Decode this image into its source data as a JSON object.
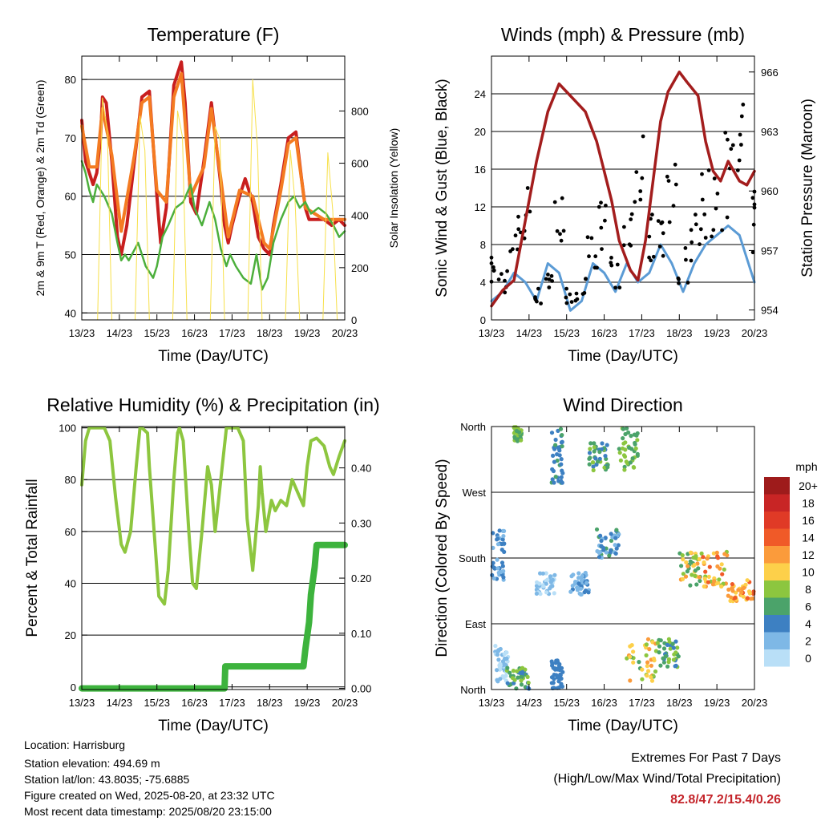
{
  "chart_data": [
    {
      "type": "line",
      "title": "Temperature (F)",
      "xlabel": "Time (Day/UTC)",
      "ylabel": "2m & 9m T (Red, Orange) & 2m Td (Green)",
      "y2label": "Solar Insolation (Yellow)",
      "x_ticks": [
        "13/23",
        "14/23",
        "15/23",
        "16/23",
        "17/23",
        "18/23",
        "19/23",
        "20/23"
      ],
      "xlim": [
        0,
        7
      ],
      "ylim": [
        38.8,
        84
      ],
      "y_ticks": [
        40,
        50,
        60,
        70,
        80
      ],
      "y2lim": [
        0,
        1010
      ],
      "y2_ticks": [
        0,
        200,
        400,
        600,
        800
      ],
      "grid": true,
      "series": [
        {
          "key": "t2m",
          "color": "#c81e1e",
          "x": [
            0,
            0.1,
            0.2,
            0.3,
            0.4,
            0.5,
            0.55,
            0.65,
            0.8,
            0.95,
            1.05,
            1.2,
            1.4,
            1.6,
            1.8,
            1.9,
            2.0,
            2.1,
            2.25,
            2.45,
            2.65,
            2.75,
            2.9,
            3.05,
            3.25,
            3.45,
            3.7,
            3.8,
            3.9,
            4.0,
            4.2,
            4.35,
            4.55,
            4.7,
            4.85,
            5.0,
            5.1,
            5.3,
            5.5,
            5.7,
            5.85,
            5.95,
            6.05,
            6.2,
            6.45,
            6.65,
            6.85,
            7.0
          ],
          "values": [
            73,
            66,
            64,
            62,
            64,
            70,
            77,
            76,
            66,
            53,
            50,
            55,
            66,
            77,
            78,
            69,
            60,
            52,
            58,
            79,
            83,
            76,
            59,
            57,
            66,
            76,
            62,
            55,
            52,
            55,
            60,
            63,
            59,
            53,
            51,
            50,
            55,
            62,
            70,
            71,
            63,
            58,
            56,
            56,
            56,
            55,
            56,
            55
          ]
        },
        {
          "key": "t9m",
          "color": "#f47b22",
          "x": [
            0,
            0.2,
            0.4,
            0.55,
            0.8,
            1.05,
            1.4,
            1.6,
            1.8,
            2.0,
            2.25,
            2.45,
            2.65,
            2.9,
            3.25,
            3.45,
            3.7,
            3.9,
            4.2,
            4.55,
            4.85,
            5.0,
            5.3,
            5.5,
            5.7,
            5.95,
            6.2,
            6.45,
            6.65,
            7.0
          ],
          "values": [
            72,
            65,
            65,
            75,
            67,
            54,
            67,
            76,
            77,
            61,
            59,
            77,
            81,
            60,
            65,
            75,
            63,
            53,
            61,
            60,
            52,
            51,
            61,
            69,
            70,
            58,
            57,
            56,
            56,
            56
          ]
        },
        {
          "key": "td2m",
          "color": "#4caf3c",
          "x": [
            0,
            0.1,
            0.2,
            0.3,
            0.4,
            0.6,
            0.8,
            0.95,
            1.05,
            1.15,
            1.25,
            1.5,
            1.7,
            1.9,
            2.0,
            2.15,
            2.3,
            2.5,
            2.7,
            2.9,
            3.0,
            3.2,
            3.4,
            3.55,
            3.7,
            3.85,
            3.95,
            4.1,
            4.3,
            4.5,
            4.65,
            4.8,
            4.95,
            5.1,
            5.3,
            5.5,
            5.65,
            5.8,
            5.95,
            6.1,
            6.3,
            6.5,
            6.7,
            6.85,
            7.0
          ],
          "values": [
            66,
            64,
            61,
            59,
            62,
            60,
            57,
            52,
            49,
            50,
            49,
            52,
            48,
            46,
            48,
            53,
            55,
            58,
            59,
            62,
            58,
            55,
            59,
            56,
            51,
            48,
            50,
            48,
            46,
            45,
            50,
            44,
            46,
            52,
            56,
            59,
            60,
            58,
            59,
            57,
            58,
            57,
            55,
            53,
            54
          ]
        },
        {
          "key": "solar",
          "axis": "y2",
          "color": "#f7e04a",
          "x": [
            0.42,
            0.55,
            0.68,
            0.8,
            1.42,
            1.55,
            1.68,
            1.8,
            2.42,
            2.55,
            2.68,
            2.8,
            3.42,
            3.55,
            3.68,
            3.8,
            4.42,
            4.55,
            4.68,
            4.8,
            5.42,
            5.55,
            5.68,
            5.8,
            6.42,
            6.55,
            6.68,
            6.8
          ],
          "values": [
            0,
            850,
            720,
            0,
            0,
            780,
            650,
            0,
            0,
            800,
            700,
            0,
            0,
            740,
            690,
            0,
            0,
            920,
            650,
            0,
            0,
            650,
            450,
            0,
            0,
            640,
            420,
            0
          ]
        }
      ]
    },
    {
      "type": "scatter",
      "title": "Winds (mph) & Pressure (mb)",
      "xlabel": "Time (Day/UTC)",
      "ylabel": "Sonic Wind & Gust (Blue, Black)",
      "y2label": "Station Pressure (Maroon)",
      "x_ticks": [
        "13/23",
        "14/23",
        "15/23",
        "16/23",
        "17/23",
        "18/23",
        "19/23",
        "20/23"
      ],
      "xlim": [
        0,
        7
      ],
      "ylim": [
        0,
        28
      ],
      "y_ticks": [
        0,
        4,
        8,
        12,
        16,
        20,
        24
      ],
      "y2lim": [
        953.5,
        966.8
      ],
      "y2_ticks": [
        954,
        957,
        960,
        963,
        966
      ],
      "grid": true,
      "series": [
        {
          "key": "wind",
          "color": "#5b9bd5",
          "x": [
            0,
            0.3,
            0.6,
            0.9,
            1.2,
            1.5,
            1.8,
            2.1,
            2.4,
            2.7,
            3.0,
            3.3,
            3.6,
            3.9,
            4.2,
            4.5,
            4.8,
            5.1,
            5.4,
            5.7,
            6.0,
            6.3,
            6.6,
            7.0
          ],
          "values": [
            2,
            3,
            5,
            4,
            2,
            6,
            5,
            1,
            2,
            6,
            5,
            3,
            6,
            4,
            5,
            8,
            6,
            3,
            6,
            8,
            9,
            10,
            9,
            4
          ]
        },
        {
          "key": "gust",
          "color": "#000000",
          "x": [
            0,
            0.3,
            0.6,
            0.9,
            1.2,
            1.5,
            1.8,
            2.1,
            2.4,
            2.7,
            3.0,
            3.3,
            3.6,
            3.9,
            4.2,
            4.5,
            4.8,
            5.1,
            5.4,
            5.7,
            6.0,
            6.3,
            6.6,
            7.0
          ],
          "values": [
            6,
            5,
            10,
            13,
            3,
            5,
            12,
            3,
            4,
            8,
            11,
            6,
            10,
            17,
            10,
            12,
            15,
            7,
            10,
            14,
            16,
            18,
            20,
            12
          ]
        },
        {
          "key": "pressure",
          "axis": "y2",
          "color": "#a31d1d",
          "x": [
            0,
            0.3,
            0.6,
            0.9,
            1.2,
            1.5,
            1.8,
            2.0,
            2.2,
            2.5,
            2.8,
            3.0,
            3.2,
            3.4,
            3.7,
            3.9,
            4.1,
            4.3,
            4.5,
            4.7,
            5.0,
            5.2,
            5.5,
            5.7,
            5.9,
            6.1,
            6.3,
            6.6,
            6.8,
            7.0
          ],
          "values": [
            954.2,
            955.0,
            955.5,
            958.5,
            961.5,
            964.0,
            965.4,
            965.0,
            964.6,
            964.0,
            962.5,
            961.0,
            959.5,
            957.5,
            956.0,
            955.5,
            957.5,
            960.5,
            963.5,
            965.0,
            966.0,
            965.5,
            964.8,
            962.5,
            961.0,
            960.5,
            961.5,
            960.5,
            960.3,
            961.0
          ]
        }
      ]
    },
    {
      "type": "line",
      "title": "Relative Humidity (%) & Precipitation (in)",
      "xlabel": "Time (Day/UTC)",
      "ylabel": "Percent & Total Rainfall",
      "x_ticks": [
        "13/23",
        "14/23",
        "15/23",
        "16/23",
        "17/23",
        "18/23",
        "19/23",
        "20/23"
      ],
      "xlim": [
        0,
        7
      ],
      "ylim": [
        -1,
        100.5
      ],
      "y_ticks": [
        0,
        20,
        40,
        60,
        80,
        100
      ],
      "y2lim": [
        -0.0021,
        0.475
      ],
      "y2_ticks": [
        "0.00",
        "0.10",
        "0.20",
        "0.30",
        "0.40"
      ],
      "grid": true,
      "series": [
        {
          "key": "rh",
          "color": "#8dc63f",
          "x": [
            0,
            0.1,
            0.2,
            0.35,
            0.6,
            0.75,
            0.9,
            1.05,
            1.15,
            1.3,
            1.45,
            1.55,
            1.6,
            1.75,
            1.8,
            1.95,
            2.05,
            2.2,
            2.3,
            2.45,
            2.55,
            2.6,
            2.7,
            2.85,
            2.95,
            3.05,
            3.2,
            3.35,
            3.45,
            3.55,
            3.7,
            3.85,
            3.9,
            4.0,
            4.15,
            4.3,
            4.4,
            4.55,
            4.7,
            4.75,
            4.8,
            4.9,
            5.05,
            5.15,
            5.3,
            5.45,
            5.6,
            5.75,
            5.9,
            6.0,
            6.1,
            6.25,
            6.45,
            6.6,
            6.7,
            6.85,
            7.0
          ],
          "values": [
            78,
            95,
            100,
            100,
            100,
            95,
            73,
            55,
            52,
            60,
            85,
            100,
            100,
            98,
            85,
            55,
            35,
            32,
            45,
            80,
            98,
            100,
            95,
            60,
            40,
            38,
            60,
            85,
            78,
            60,
            80,
            100,
            100,
            100,
            100,
            95,
            65,
            45,
            70,
            85,
            75,
            60,
            72,
            68,
            72,
            70,
            80,
            75,
            70,
            85,
            95,
            96,
            93,
            85,
            82,
            89,
            95
          ]
        },
        {
          "key": "precip",
          "axis": "y2",
          "color": "#3db33d",
          "x": [
            0,
            3.8,
            3.82,
            5.9,
            5.95,
            6.05,
            6.1,
            6.2,
            6.25,
            7.0
          ],
          "values": [
            0,
            0,
            0.04,
            0.04,
            0.07,
            0.12,
            0.17,
            0.22,
            0.26,
            0.26
          ]
        }
      ]
    },
    {
      "type": "scatter",
      "title": "Wind Direction",
      "xlabel": "Time (Day/UTC)",
      "ylabel": "Direction (Colored By Speed)",
      "x_ticks": [
        "13/23",
        "14/23",
        "15/23",
        "16/23",
        "17/23",
        "18/23",
        "19/23",
        "20/23"
      ],
      "xlim": [
        0,
        7
      ],
      "ylim": [
        0,
        360
      ],
      "y_ticks": [
        {
          "v": 0,
          "label": "North"
        },
        {
          "v": 90,
          "label": "East"
        },
        {
          "v": 180,
          "label": "South"
        },
        {
          "v": 270,
          "label": "West"
        },
        {
          "v": 360,
          "label": "North"
        }
      ],
      "grid": true,
      "legend": {
        "title": "mph",
        "placement": "right",
        "labels": [
          "20+",
          "18",
          "16",
          "14",
          "12",
          "10",
          "8",
          "6",
          "4",
          "2",
          "0"
        ],
        "colors": [
          "#9e1b1b",
          "#c82525",
          "#e03a26",
          "#f05a28",
          "#fb9b3b",
          "#fdd04a",
          "#8cc63f",
          "#4ba36a",
          "#3d80c2",
          "#7eb8e6",
          "#b9dff7"
        ]
      },
      "clusters": [
        {
          "x": [
            0.0,
            0.35
          ],
          "y": [
            150,
            220
          ],
          "speed": [
            2,
            4
          ]
        },
        {
          "x": [
            0.1,
            0.45
          ],
          "y": [
            10,
            60
          ],
          "speed": [
            0,
            3
          ]
        },
        {
          "x": [
            0.4,
            1.0
          ],
          "y": [
            0,
            30
          ],
          "speed": [
            4,
            9
          ]
        },
        {
          "x": [
            0.6,
            0.8
          ],
          "y": [
            340,
            360
          ],
          "speed": [
            6,
            8
          ]
        },
        {
          "x": [
            1.2,
            1.7
          ],
          "y": [
            130,
            160
          ],
          "speed": [
            0,
            3
          ]
        },
        {
          "x": [
            1.6,
            1.9
          ],
          "y": [
            280,
            360
          ],
          "speed": [
            3,
            6
          ]
        },
        {
          "x": [
            1.6,
            1.9
          ],
          "y": [
            0,
            40
          ],
          "speed": [
            3,
            5
          ]
        },
        {
          "x": [
            2.1,
            2.6
          ],
          "y": [
            130,
            160
          ],
          "speed": [
            1,
            4
          ]
        },
        {
          "x": [
            2.6,
            3.1
          ],
          "y": [
            300,
            340
          ],
          "speed": [
            3,
            8
          ]
        },
        {
          "x": [
            2.8,
            3.4
          ],
          "y": [
            180,
            220
          ],
          "speed": [
            2,
            6
          ]
        },
        {
          "x": [
            3.4,
            3.9
          ],
          "y": [
            300,
            360
          ],
          "speed": [
            5,
            9
          ]
        },
        {
          "x": [
            3.6,
            4.4
          ],
          "y": [
            10,
            70
          ],
          "speed": [
            6,
            12
          ]
        },
        {
          "x": [
            4.4,
            5.0
          ],
          "y": [
            30,
            70
          ],
          "speed": [
            4,
            8
          ]
        },
        {
          "x": [
            5.0,
            5.6
          ],
          "y": [
            140,
            190
          ],
          "speed": [
            5,
            12
          ]
        },
        {
          "x": [
            5.6,
            6.3
          ],
          "y": [
            140,
            190
          ],
          "speed": [
            8,
            14
          ]
        },
        {
          "x": [
            6.3,
            7.0
          ],
          "y": [
            120,
            150
          ],
          "speed": [
            9,
            14
          ]
        }
      ]
    }
  ],
  "footer": {
    "location": "Location: Harrisburg",
    "elevation": "Station elevation: 494.69 m",
    "latlon": "Station lat/lon: 43.8035; -75.6885",
    "created": "Figure created on Wed, 2025-08-20, at 23:32 UTC",
    "recent": "Most recent data timestamp: 2025/08/20 23:15:00"
  },
  "extremes": {
    "title": "Extremes For Past 7 Days",
    "subtitle": "(High/Low/Max Wind/Total Precipitation)",
    "values": "82.8/47.2/15.4/0.26"
  }
}
